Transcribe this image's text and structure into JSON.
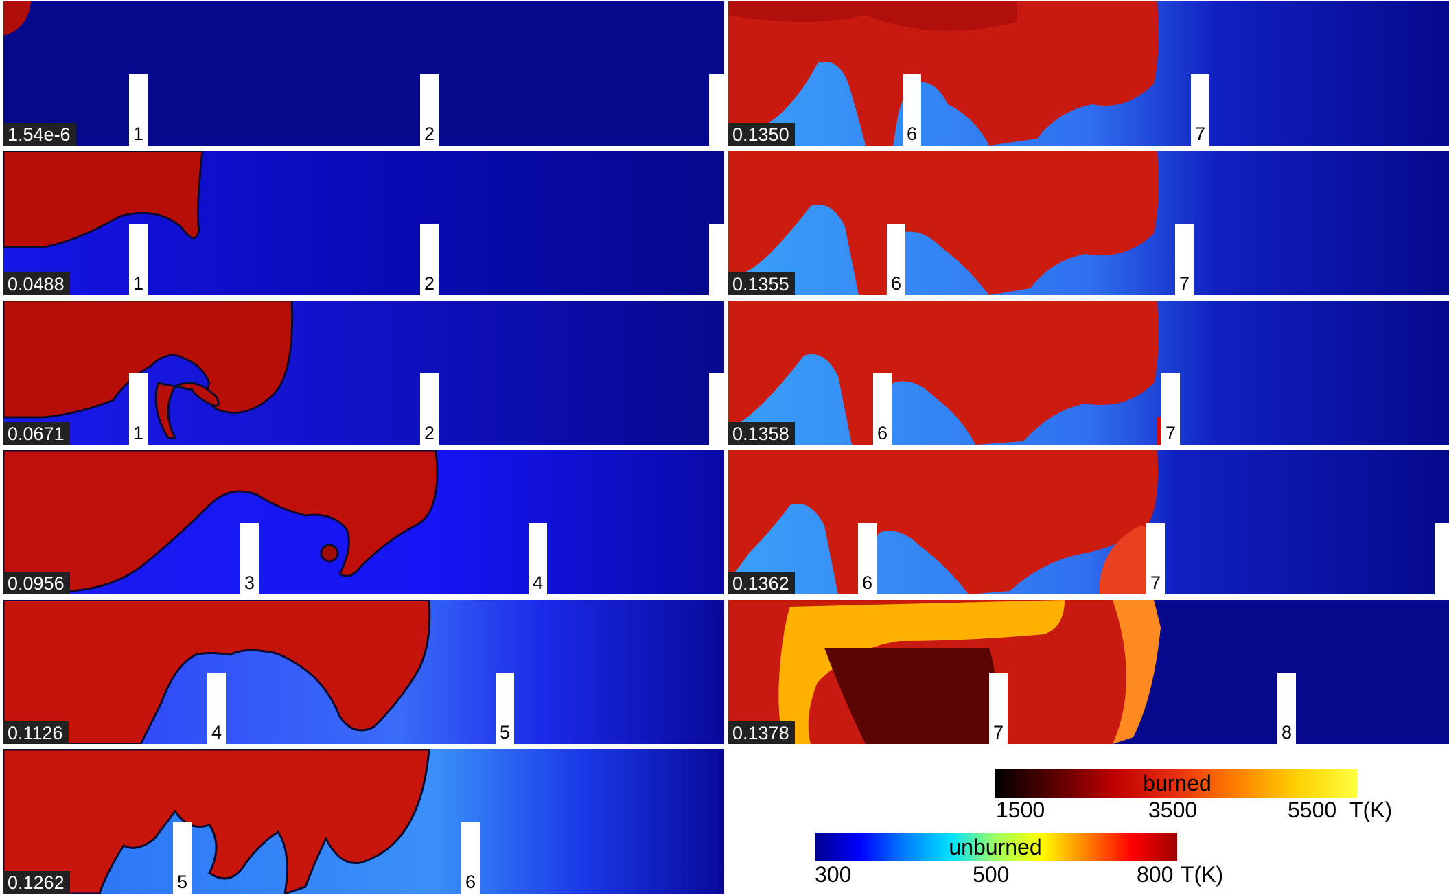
{
  "panels": [
    {
      "time": "1.54e-6",
      "obstacles": [
        "1",
        "2",
        ""
      ]
    },
    {
      "time": "0.0488",
      "obstacles": [
        "1",
        "2",
        ""
      ]
    },
    {
      "time": "0.0671",
      "obstacles": [
        "1",
        "2",
        ""
      ]
    },
    {
      "time": "0.0956",
      "obstacles": [
        "3",
        "4"
      ]
    },
    {
      "time": "0.1126",
      "obstacles": [
        "4",
        "5"
      ]
    },
    {
      "time": "0.1262",
      "obstacles": [
        "5",
        "6"
      ]
    },
    {
      "time": "0.1350",
      "obstacles": [
        "6",
        "7"
      ]
    },
    {
      "time": "0.1355",
      "obstacles": [
        "6",
        "7"
      ]
    },
    {
      "time": "0.1358",
      "obstacles": [
        "6",
        "7"
      ]
    },
    {
      "time": "0.1362",
      "obstacles": [
        "6",
        "7",
        ""
      ]
    },
    {
      "time": "0.1378",
      "obstacles": [
        "7",
        "8"
      ]
    }
  ],
  "colorbars": {
    "burned": {
      "title": "burned",
      "ticks": [
        "1500",
        "3500",
        "5500"
      ],
      "unit": "T(K)",
      "colors": [
        "#000000",
        "#5a0000",
        "#c00000",
        "#e83010",
        "#ff8000",
        "#ffd000",
        "#ffff40"
      ]
    },
    "unburned": {
      "title": "unburned",
      "ticks": [
        "300",
        "500",
        "800"
      ],
      "unit": "T(K)",
      "colors": [
        "#00008c",
        "#0000ff",
        "#0080ff",
        "#00e0ff",
        "#a0ff60",
        "#ffff00",
        "#ff8000",
        "#ff0000",
        "#a00000"
      ]
    }
  }
}
